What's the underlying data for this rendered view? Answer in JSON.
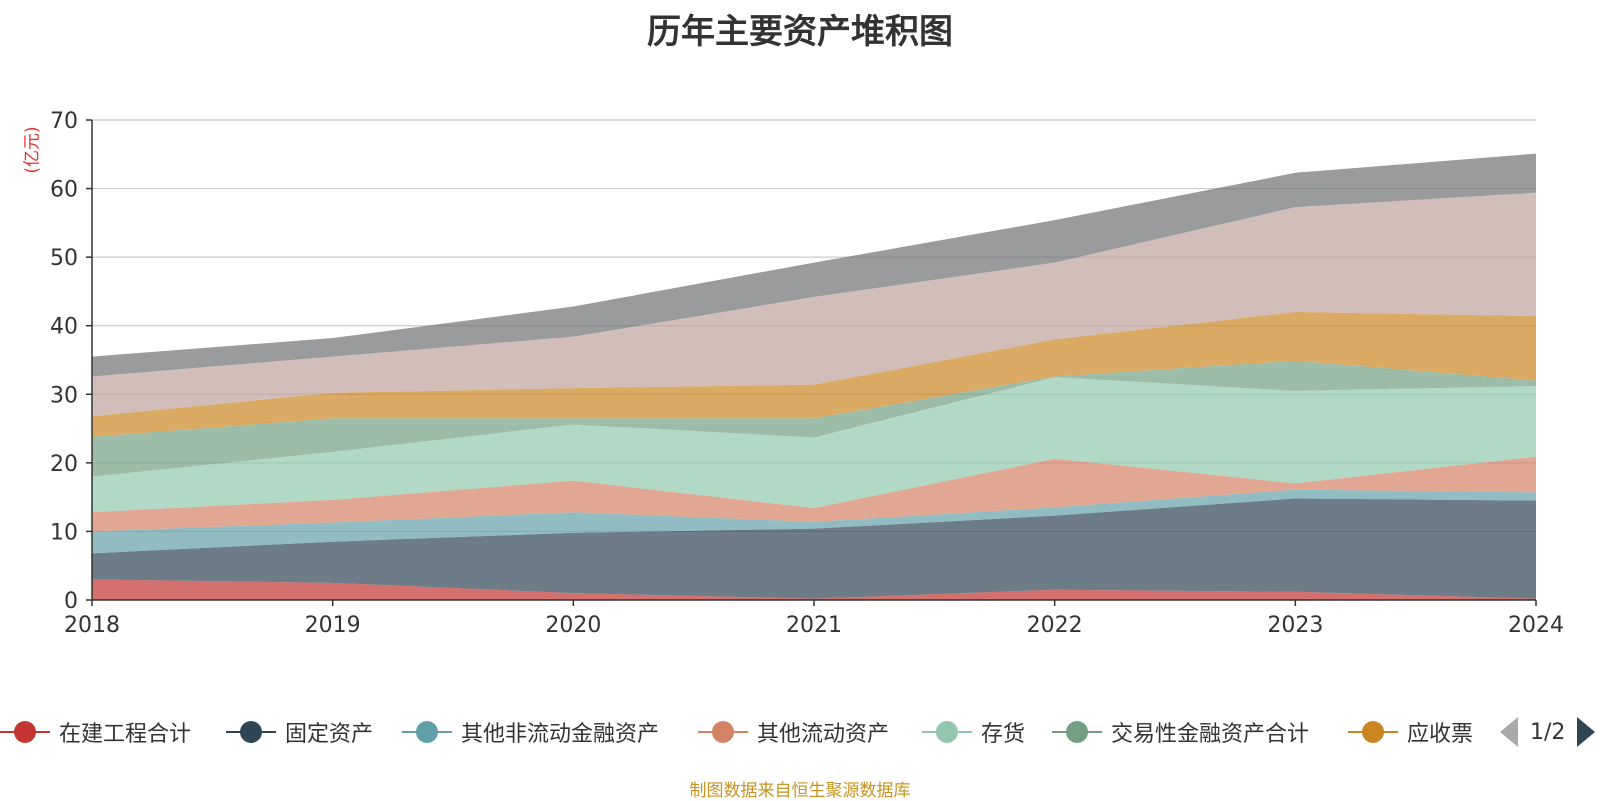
{
  "chart_data": {
    "type": "area",
    "title": "历年主要资产堆积图",
    "y_unit": "(亿元)",
    "categories": [
      "2018",
      "2019",
      "2020",
      "2021",
      "2022",
      "2023",
      "2024"
    ],
    "ylim": [
      0,
      70
    ],
    "yticks": [
      0,
      10,
      20,
      30,
      40,
      50,
      60,
      70
    ],
    "grid": true,
    "stacked": true,
    "series": [
      {
        "name": "在建工程合计",
        "color": "#c23531",
        "values": [
          3.0,
          2.5,
          1.0,
          0.2,
          1.5,
          1.2,
          0.2
        ]
      },
      {
        "name": "固定资产",
        "color": "#2f4554",
        "values": [
          3.8,
          6.0,
          8.8,
          10.2,
          10.8,
          13.6,
          14.3
        ]
      },
      {
        "name": "其他非流动金融资产",
        "color": "#61a0a8",
        "values": [
          3.2,
          2.8,
          3.0,
          1.0,
          1.2,
          1.3,
          1.2
        ]
      },
      {
        "name": "其他流动资产",
        "color": "#d48265",
        "values": [
          2.8,
          3.3,
          4.6,
          2.0,
          7.1,
          0.9,
          5.2
        ]
      },
      {
        "name": "存货",
        "color": "#91c7ae",
        "values": [
          5.2,
          7.0,
          8.2,
          10.3,
          11.9,
          13.5,
          10.3
        ]
      },
      {
        "name": "交易性金融资产合计",
        "color": "#749f83",
        "values": [
          5.8,
          4.9,
          0.9,
          2.8,
          0.1,
          4.4,
          0.8
        ]
      },
      {
        "name": "应收票",
        "color": "#ca8622",
        "values": [
          3.0,
          3.7,
          4.4,
          4.9,
          5.4,
          7.1,
          9.4
        ]
      },
      {
        "color": "#bda29a",
        "values": [
          5.8,
          5.3,
          7.5,
          12.8,
          11.2,
          15.3,
          18.0
        ]
      },
      {
        "color": "#6e7074",
        "values": [
          2.9,
          2.7,
          4.4,
          5.0,
          6.2,
          5.0,
          5.7
        ]
      }
    ]
  },
  "legend": {
    "items": [
      {
        "label": "在建工程合计",
        "color": "#c23531"
      },
      {
        "label": "固定资产",
        "color": "#2f4554"
      },
      {
        "label": "其他非流动金融资产",
        "color": "#61a0a8"
      },
      {
        "label": "其他流动资产",
        "color": "#d48265"
      },
      {
        "label": "存货",
        "color": "#91c7ae"
      },
      {
        "label": "交易性金融资产合计",
        "color": "#749f83"
      },
      {
        "label": "应收票",
        "color": "#ca8622"
      }
    ],
    "page_indicator": "1/2",
    "prev_icon": "triangle-left-icon",
    "next_icon": "triangle-right-icon"
  },
  "source": "制图数据来自恒生聚源数据库"
}
